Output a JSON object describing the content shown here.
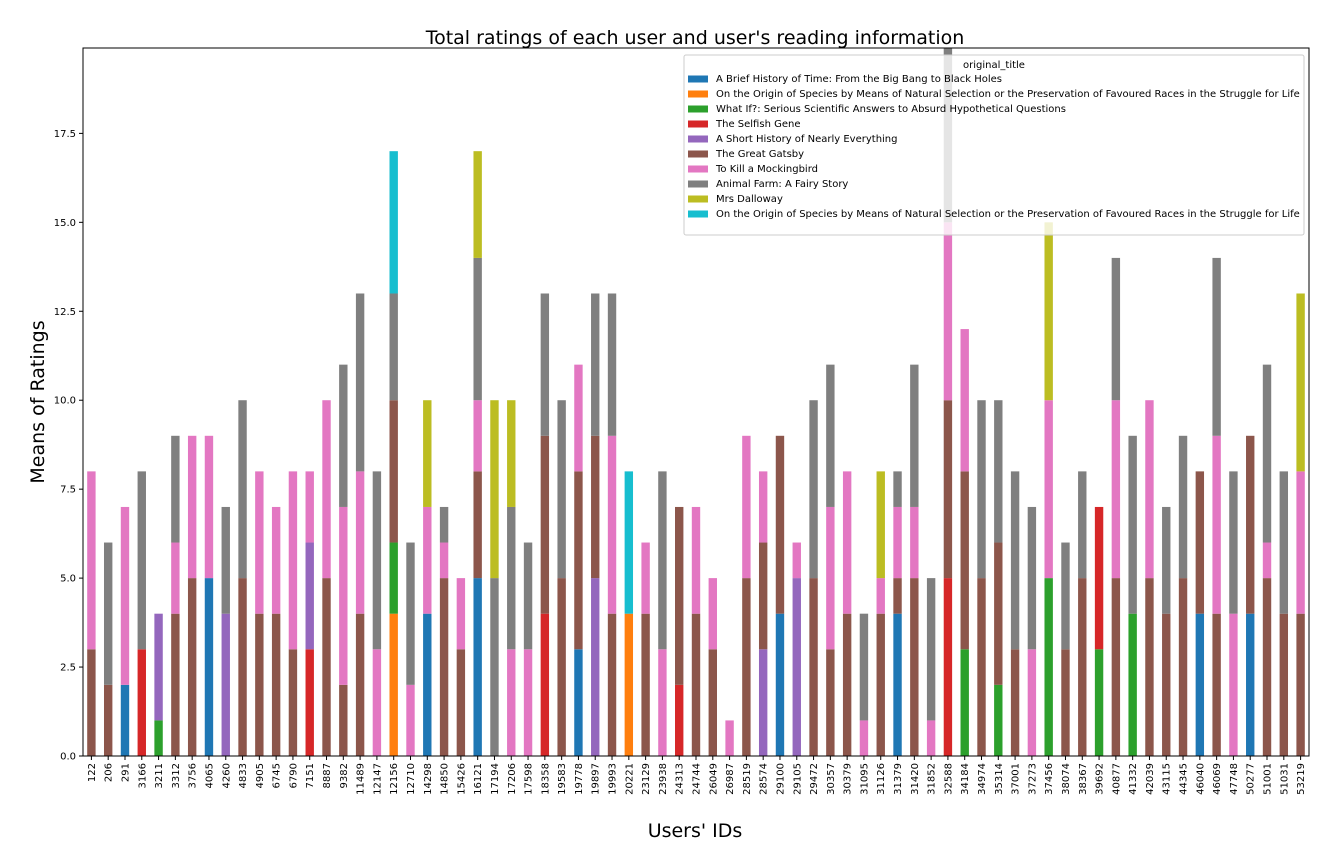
{
  "chart_data": {
    "type": "stacked_bar",
    "title": "Total ratings of each user and user's reading information",
    "xlabel": "Users' IDs",
    "ylabel": "Means of Ratings",
    "categories": [
      "122",
      "206",
      "291",
      "3166",
      "3211",
      "3312",
      "3756",
      "4065",
      "4260",
      "4833",
      "4905",
      "6745",
      "6790",
      "7151",
      "8887",
      "9382",
      "11489",
      "12147",
      "12156",
      "12710",
      "14298",
      "14850",
      "15426",
      "16121",
      "17194",
      "17206",
      "17598",
      "18358",
      "19583",
      "19778",
      "19897",
      "19993",
      "20221",
      "23129",
      "23938",
      "24313",
      "24744",
      "26049",
      "26987",
      "28519",
      "28574",
      "29100",
      "29105",
      "29472",
      "30357",
      "30379",
      "31095",
      "31126",
      "31379",
      "31420",
      "31852",
      "32588",
      "34184",
      "34974",
      "35314",
      "37001",
      "37273",
      "37456",
      "38074",
      "38367",
      "39692",
      "40877",
      "41332",
      "42039",
      "43115",
      "44345",
      "46040",
      "46069",
      "47748",
      "50277",
      "51001",
      "51031",
      "53219"
    ],
    "ylim": [
      0,
      19.9
    ],
    "yticks": [
      {
        "value": 0,
        "label": "0.0"
      },
      2.5,
      {
        "value": 5,
        "label": "5.0"
      },
      7.5,
      {
        "value": 10,
        "label": "10.0"
      },
      12.5,
      {
        "value": 15,
        "label": "15.0"
      },
      17.5
    ],
    "legend": {
      "title": "original_title",
      "loc": "upper right"
    },
    "series": [
      {
        "name": "A Brief History of Time: From the Big Bang to Black Holes",
        "color": "#1f77b4",
        "values": [
          null,
          null,
          2,
          null,
          null,
          null,
          null,
          5,
          null,
          null,
          null,
          null,
          null,
          null,
          null,
          null,
          null,
          null,
          null,
          null,
          4,
          null,
          null,
          5,
          null,
          null,
          null,
          null,
          null,
          3,
          null,
          null,
          null,
          null,
          null,
          null,
          null,
          null,
          null,
          null,
          null,
          4,
          null,
          null,
          null,
          null,
          null,
          null,
          4,
          null,
          null,
          null,
          null,
          null,
          null,
          null,
          null,
          null,
          null,
          null,
          null,
          null,
          null,
          null,
          null,
          null,
          4,
          null,
          null,
          4,
          null,
          null,
          null
        ]
      },
      {
        "name": "On the Origin of Species by Means of Natural Selection or the Preservation of Favoured Races in the Struggle for Life",
        "color": "#ff7f0e",
        "values": [
          null,
          null,
          null,
          null,
          null,
          null,
          null,
          null,
          null,
          null,
          null,
          null,
          null,
          null,
          null,
          null,
          null,
          null,
          4,
          null,
          null,
          null,
          null,
          null,
          null,
          null,
          null,
          null,
          null,
          null,
          null,
          null,
          4,
          null,
          null,
          null,
          null,
          null,
          null,
          null,
          null,
          null,
          null,
          null,
          null,
          null,
          null,
          null,
          null,
          null,
          null,
          null,
          null,
          null,
          null,
          null,
          null,
          null,
          null,
          null,
          null,
          null,
          null,
          null,
          null,
          null,
          null,
          null,
          null,
          null,
          null,
          null,
          null
        ]
      },
      {
        "name": "What If?: Serious Scientific Answers to Absurd Hypothetical Questions",
        "color": "#2ca02c",
        "values": [
          null,
          null,
          null,
          null,
          1,
          null,
          null,
          null,
          null,
          null,
          null,
          null,
          null,
          null,
          null,
          null,
          null,
          null,
          2,
          null,
          null,
          null,
          null,
          null,
          null,
          null,
          null,
          null,
          null,
          null,
          null,
          null,
          null,
          null,
          null,
          null,
          null,
          null,
          null,
          null,
          null,
          null,
          null,
          null,
          null,
          null,
          null,
          null,
          null,
          null,
          null,
          null,
          3,
          null,
          2,
          null,
          null,
          5,
          null,
          null,
          3,
          null,
          4,
          null,
          null,
          null,
          null,
          null,
          null,
          null,
          null,
          null,
          null
        ]
      },
      {
        "name": "The Selfish Gene",
        "color": "#d62728",
        "values": [
          null,
          null,
          null,
          3,
          null,
          null,
          null,
          null,
          null,
          null,
          null,
          null,
          null,
          3,
          null,
          null,
          null,
          null,
          null,
          null,
          null,
          null,
          null,
          null,
          null,
          null,
          null,
          4,
          null,
          null,
          null,
          null,
          null,
          null,
          null,
          2,
          null,
          null,
          null,
          null,
          null,
          null,
          null,
          null,
          null,
          null,
          null,
          null,
          null,
          null,
          null,
          5,
          null,
          null,
          null,
          null,
          null,
          null,
          null,
          null,
          4,
          null,
          null,
          null,
          null,
          null,
          null,
          null,
          null,
          null,
          null,
          null,
          null
        ]
      },
      {
        "name": "A Short History of Nearly Everything",
        "color": "#9467bd",
        "values": [
          null,
          null,
          null,
          null,
          3,
          null,
          null,
          null,
          4,
          null,
          null,
          null,
          null,
          3,
          null,
          null,
          null,
          null,
          null,
          null,
          null,
          null,
          null,
          null,
          null,
          null,
          null,
          null,
          null,
          null,
          5,
          null,
          null,
          null,
          null,
          null,
          null,
          null,
          null,
          null,
          3,
          null,
          5,
          null,
          null,
          null,
          null,
          null,
          null,
          null,
          null,
          null,
          null,
          null,
          null,
          null,
          null,
          null,
          null,
          null,
          null,
          null,
          null,
          null,
          null,
          null,
          null,
          null,
          null,
          null,
          null,
          null,
          null
        ]
      },
      {
        "name": "The Great Gatsby",
        "color": "#8c564b",
        "values": [
          3,
          2,
          null,
          null,
          null,
          4,
          5,
          null,
          null,
          5,
          4,
          4,
          3,
          null,
          5,
          2,
          4,
          null,
          4,
          null,
          null,
          5,
          3,
          3,
          null,
          null,
          null,
          5,
          5,
          5,
          4,
          4,
          null,
          4,
          null,
          5,
          4,
          3,
          null,
          5,
          3,
          5,
          null,
          5,
          3,
          4,
          null,
          4,
          1,
          5,
          null,
          5,
          5,
          5,
          4,
          3,
          null,
          null,
          3,
          5,
          null,
          5,
          null,
          5,
          4,
          5,
          4,
          4,
          null,
          5,
          5,
          4,
          4
        ]
      },
      {
        "name": "To Kill a Mockingbird",
        "color": "#e377c2",
        "values": [
          5,
          null,
          5,
          null,
          null,
          2,
          4,
          4,
          null,
          null,
          4,
          3,
          5,
          2,
          5,
          5,
          4,
          3,
          null,
          2,
          3,
          1,
          2,
          2,
          null,
          3,
          3,
          null,
          null,
          3,
          null,
          5,
          null,
          2,
          3,
          null,
          3,
          2,
          1,
          4,
          2,
          null,
          1,
          null,
          4,
          4,
          1,
          1,
          2,
          2,
          1,
          5,
          4,
          null,
          null,
          null,
          3,
          5,
          null,
          null,
          null,
          5,
          null,
          5,
          null,
          null,
          null,
          5,
          4,
          null,
          1,
          null,
          4
        ]
      },
      {
        "name": "Animal Farm: A Fairy Story",
        "color": "#7f7f7f",
        "values": [
          null,
          4,
          null,
          5,
          null,
          3,
          null,
          null,
          3,
          5,
          null,
          null,
          null,
          null,
          null,
          4,
          5,
          5,
          3,
          4,
          null,
          1,
          null,
          4,
          5,
          4,
          3,
          4,
          5,
          null,
          4,
          4,
          null,
          null,
          5,
          null,
          null,
          null,
          null,
          null,
          null,
          null,
          null,
          5,
          4,
          null,
          3,
          null,
          1,
          4,
          4,
          5,
          null,
          5,
          4,
          5,
          4,
          null,
          3,
          3,
          null,
          4,
          5,
          null,
          3,
          4,
          null,
          5,
          4,
          null,
          5,
          4,
          null
        ]
      },
      {
        "name": "Mrs Dalloway",
        "color": "#bcbd22",
        "values": [
          null,
          null,
          null,
          null,
          null,
          null,
          null,
          null,
          null,
          null,
          null,
          null,
          null,
          null,
          null,
          null,
          null,
          null,
          null,
          null,
          3,
          null,
          null,
          3,
          5,
          3,
          null,
          null,
          null,
          null,
          null,
          null,
          null,
          null,
          null,
          null,
          null,
          null,
          null,
          null,
          null,
          null,
          null,
          null,
          null,
          null,
          null,
          3,
          null,
          null,
          null,
          null,
          null,
          null,
          null,
          null,
          null,
          5,
          null,
          null,
          null,
          null,
          null,
          null,
          null,
          null,
          null,
          null,
          null,
          null,
          null,
          null,
          5
        ]
      },
      {
        "name": "On the Origin of Species by Means of Natural Selection or the Preservation of Favoured Races in the Struggle for Life",
        "color": "#17becf",
        "values": [
          null,
          null,
          null,
          null,
          null,
          null,
          null,
          null,
          null,
          null,
          null,
          null,
          null,
          null,
          null,
          null,
          null,
          null,
          4,
          null,
          null,
          null,
          null,
          null,
          null,
          null,
          null,
          null,
          null,
          null,
          null,
          null,
          4,
          null,
          null,
          null,
          null,
          null,
          null,
          null,
          null,
          null,
          null,
          null,
          null,
          null,
          null,
          null,
          null,
          null,
          null,
          null,
          null,
          null,
          null,
          null,
          null,
          null,
          null,
          null,
          null,
          null,
          null,
          null,
          null,
          null,
          null,
          null,
          null,
          null,
          null,
          null,
          null
        ]
      }
    ]
  }
}
